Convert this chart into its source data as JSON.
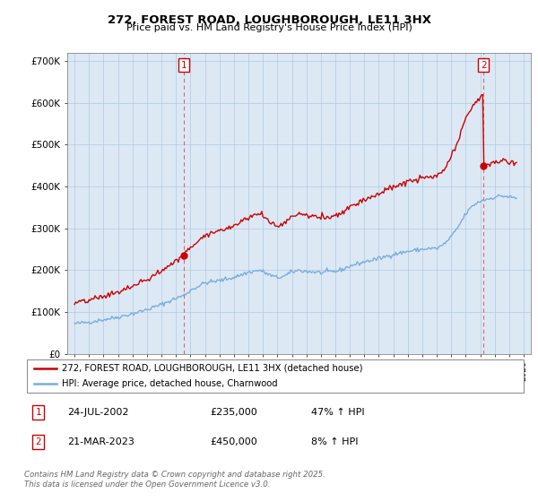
{
  "title": "272, FOREST ROAD, LOUGHBOROUGH, LE11 3HX",
  "subtitle": "Price paid vs. HM Land Registry's House Price Index (HPI)",
  "hpi_label": "HPI: Average price, detached house, Charnwood",
  "prop_label": "272, FOREST ROAD, LOUGHBOROUGH, LE11 3HX (detached house)",
  "legend1_date": "24-JUL-2002",
  "legend1_price": "£235,000",
  "legend1_hpi": "47% ↑ HPI",
  "legend2_date": "21-MAR-2023",
  "legend2_price": "£450,000",
  "legend2_hpi": "8% ↑ HPI",
  "footer": "Contains HM Land Registry data © Crown copyright and database right 2025.\nThis data is licensed under the Open Government Licence v3.0.",
  "prop_color": "#cc0000",
  "hpi_color": "#7aaddb",
  "sale1_x": 2002.56,
  "sale1_y": 235000,
  "sale2_x": 2023.22,
  "sale2_y": 450000,
  "vline1_x": 2002.56,
  "vline2_x": 2023.22,
  "ylim": [
    0,
    720000
  ],
  "xlim": [
    1994.5,
    2026.5
  ],
  "background_color": "#dce9f5",
  "grid_color": "#b0c8e0"
}
